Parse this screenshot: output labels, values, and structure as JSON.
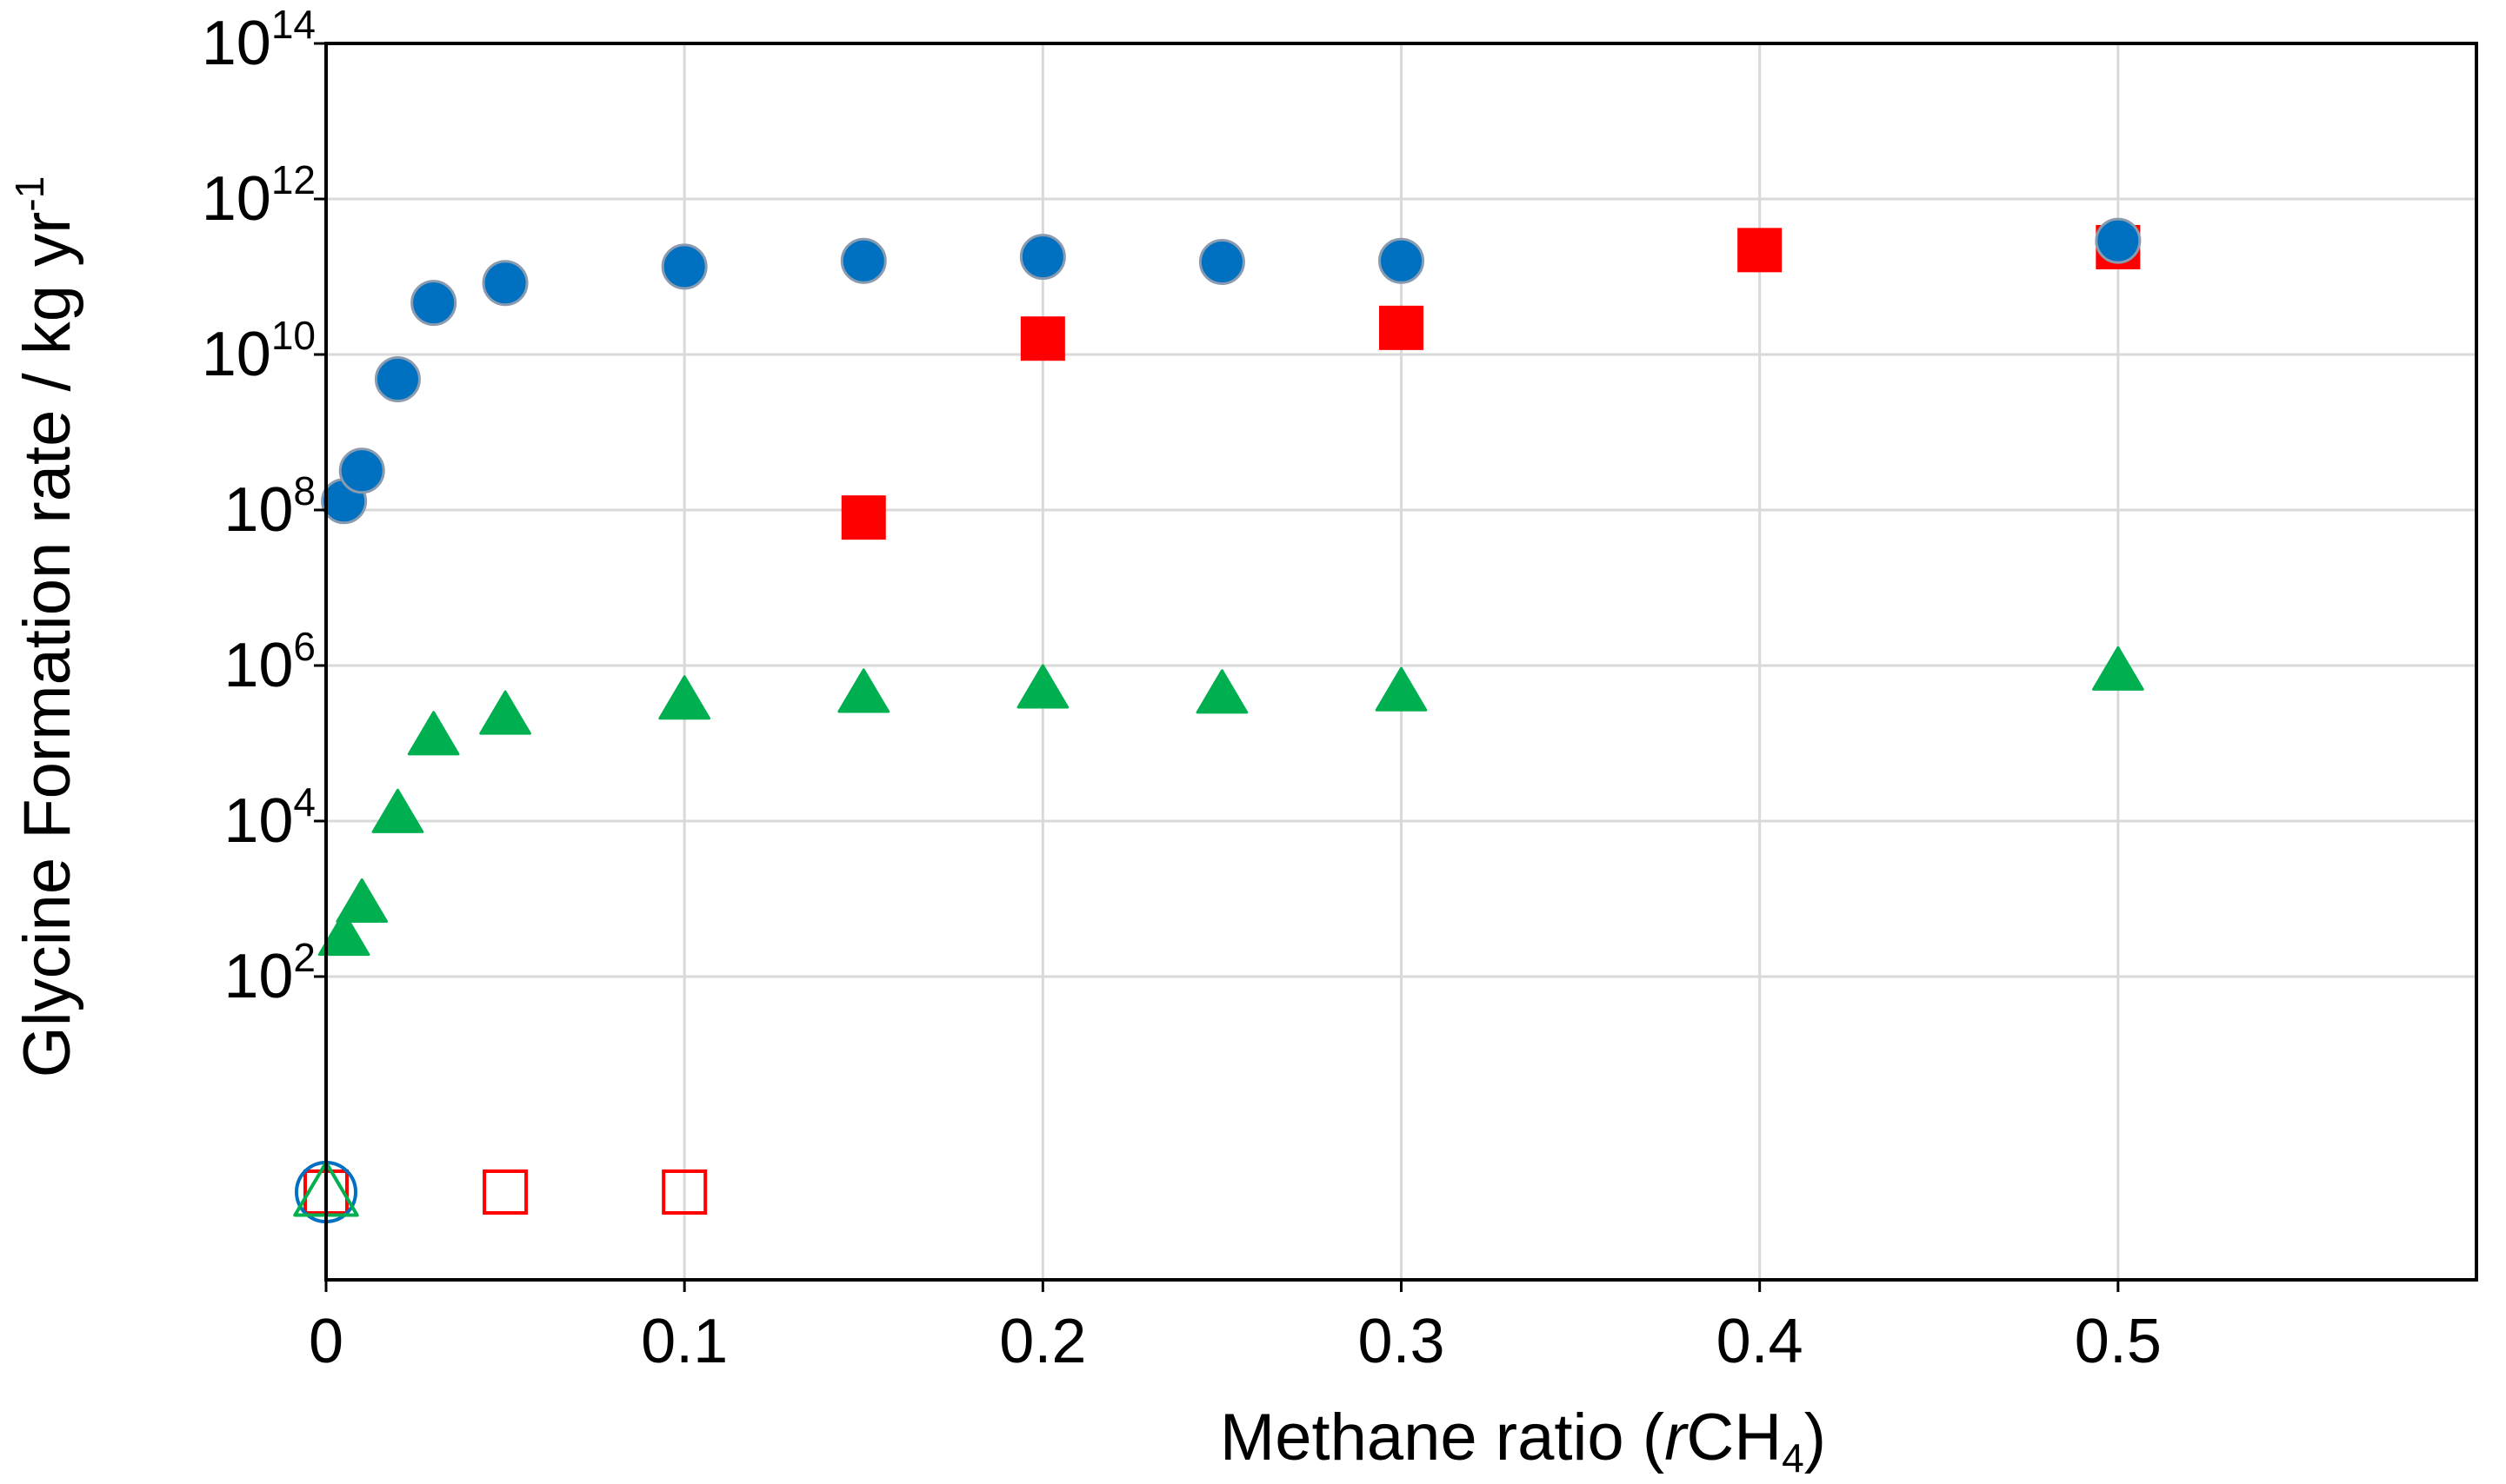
{
  "chart_data": {
    "type": "scatter",
    "title": "",
    "xlabel": {
      "text": "Methane ratio (",
      "italic": "r",
      "species": "CH",
      "subscript": "4",
      "close": ")"
    },
    "ylabel": {
      "text": "Glycine Formation rate / kg yr",
      "superscript": "-1"
    },
    "xlim": [
      0,
      0.6
    ],
    "ylim_log10": [
      -1.9,
      14
    ],
    "grid": true,
    "x_ticks": [
      {
        "value": 0,
        "label": "0"
      },
      {
        "value": 0.1,
        "label": "0.1"
      },
      {
        "value": 0.2,
        "label": "0.2"
      },
      {
        "value": 0.3,
        "label": "0.3"
      },
      {
        "value": 0.4,
        "label": "0.4"
      },
      {
        "value": 0.5,
        "label": "0.5"
      }
    ],
    "y_ticks": [
      {
        "exp": 2,
        "base": "10",
        "sup": "2"
      },
      {
        "exp": 4,
        "base": "10",
        "sup": "4"
      },
      {
        "exp": 6,
        "base": "10",
        "sup": "6"
      },
      {
        "exp": 8,
        "base": "10",
        "sup": "8"
      },
      {
        "exp": 10,
        "base": "10",
        "sup": "10"
      },
      {
        "exp": 12,
        "base": "10",
        "sup": "12"
      },
      {
        "exp": 14,
        "base": "10",
        "sup": "14"
      }
    ],
    "series": [
      {
        "name": "red squares (filled)",
        "marker": "square",
        "filled": true,
        "color": "#ff0000",
        "stroke": "#ff0000",
        "points": [
          {
            "x": 0.15,
            "y": 80000000.0
          },
          {
            "x": 0.2,
            "y": 16000000000.0
          },
          {
            "x": 0.3,
            "y": 22000000000.0
          },
          {
            "x": 0.4,
            "y": 220000000000.0
          },
          {
            "x": 0.5,
            "y": 240000000000.0
          }
        ]
      },
      {
        "name": "red squares (open, below detection)",
        "marker": "square",
        "filled": false,
        "color": "#ff0000",
        "stroke": "#ff0000",
        "points": [
          {
            "x": 0,
            "y": 0
          },
          {
            "x": 0.05,
            "y": 0
          },
          {
            "x": 0.1,
            "y": 0
          }
        ]
      },
      {
        "name": "blue circles (filled)",
        "marker": "circle",
        "filled": true,
        "color": "#0070c0",
        "stroke": "#8a9bb0",
        "points": [
          {
            "x": 0.005,
            "y": 130000000.0
          },
          {
            "x": 0.01,
            "y": 320000000.0
          },
          {
            "x": 0.02,
            "y": 4800000000.0
          },
          {
            "x": 0.03,
            "y": 46000000000.0
          },
          {
            "x": 0.05,
            "y": 83000000000.0
          },
          {
            "x": 0.1,
            "y": 135000000000.0
          },
          {
            "x": 0.15,
            "y": 160000000000.0
          },
          {
            "x": 0.2,
            "y": 180000000000.0
          },
          {
            "x": 0.25,
            "y": 155000000000.0
          },
          {
            "x": 0.3,
            "y": 160000000000.0
          },
          {
            "x": 0.5,
            "y": 290000000000.0
          }
        ]
      },
      {
        "name": "blue circles (open, below detection)",
        "marker": "circle",
        "filled": false,
        "color": "#0070c0",
        "stroke": "#0070c0",
        "points": [
          {
            "x": 0,
            "y": 0
          }
        ]
      },
      {
        "name": "green triangles (filled)",
        "marker": "triangle",
        "filled": true,
        "color": "#00b050",
        "stroke": "#00b050",
        "points": [
          {
            "x": 0.005,
            "y": 330
          },
          {
            "x": 0.01,
            "y": 880
          },
          {
            "x": 0.02,
            "y": 12500.0
          },
          {
            "x": 0.03,
            "y": 125000.0
          },
          {
            "x": 0.05,
            "y": 230000.0
          },
          {
            "x": 0.1,
            "y": 360000.0
          },
          {
            "x": 0.15,
            "y": 440000.0
          },
          {
            "x": 0.2,
            "y": 500000.0
          },
          {
            "x": 0.25,
            "y": 430000.0
          },
          {
            "x": 0.3,
            "y": 460000.0
          },
          {
            "x": 0.5,
            "y": 850000.0
          }
        ]
      },
      {
        "name": "green triangles (open, below detection)",
        "marker": "triangle",
        "filled": false,
        "color": "#00b050",
        "stroke": "#00b050",
        "points": [
          {
            "x": 0,
            "y": 0
          }
        ]
      }
    ]
  }
}
